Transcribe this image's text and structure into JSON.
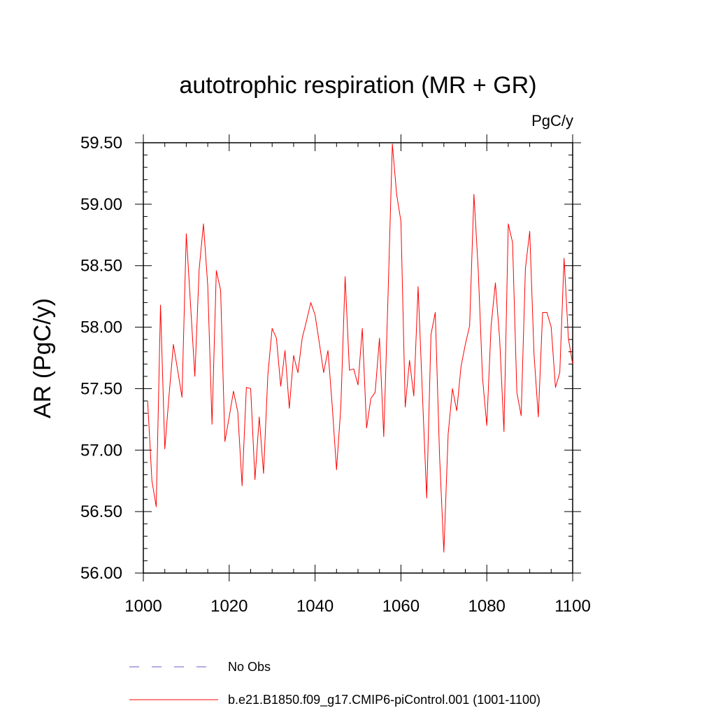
{
  "chart_data": {
    "type": "line",
    "title": "autotrophic respiration (MR + GR)",
    "units_label": "PgC/y",
    "xlabel": "",
    "ylabel": "AR  (PgC/y)",
    "xlim": [
      1000,
      1100
    ],
    "ylim": [
      56.0,
      59.5
    ],
    "xticks": [
      1000,
      1020,
      1040,
      1060,
      1080,
      1100
    ],
    "xtick_labels": [
      "1000",
      "1020",
      "1040",
      "1060",
      "1080",
      "1100"
    ],
    "yticks": [
      56.0,
      56.5,
      57.0,
      57.5,
      58.0,
      58.5,
      59.0,
      59.5
    ],
    "ytick_labels": [
      "56.00",
      "56.50",
      "57.00",
      "57.50",
      "58.00",
      "58.50",
      "59.00",
      "59.50"
    ],
    "grid": false,
    "legend_position": "bottom",
    "series": [
      {
        "name": "No Obs",
        "style": "dashed",
        "color": "#6a5acd",
        "x": [],
        "values": []
      },
      {
        "name": "b.e21.B1850.f09_g17.CMIP6-piControl.001 (1001-1100)",
        "style": "solid",
        "color": "#ff0000",
        "x": [
          1001,
          1002,
          1003,
          1004,
          1005,
          1006,
          1007,
          1008,
          1009,
          1010,
          1011,
          1012,
          1013,
          1014,
          1015,
          1016,
          1017,
          1018,
          1019,
          1020,
          1021,
          1022,
          1023,
          1024,
          1025,
          1026,
          1027,
          1028,
          1029,
          1030,
          1031,
          1032,
          1033,
          1034,
          1035,
          1036,
          1037,
          1038,
          1039,
          1040,
          1041,
          1042,
          1043,
          1044,
          1045,
          1046,
          1047,
          1048,
          1049,
          1050,
          1051,
          1052,
          1053,
          1054,
          1055,
          1056,
          1057,
          1058,
          1059,
          1060,
          1061,
          1062,
          1063,
          1064,
          1065,
          1066,
          1067,
          1068,
          1069,
          1070,
          1071,
          1072,
          1073,
          1074,
          1075,
          1076,
          1077,
          1078,
          1079,
          1080,
          1081,
          1082,
          1083,
          1084,
          1085,
          1086,
          1087,
          1088,
          1089,
          1090,
          1091,
          1092,
          1093,
          1094,
          1095,
          1096,
          1097,
          1098,
          1099,
          1100
        ],
        "values": [
          57.4,
          56.75,
          56.54,
          58.18,
          57.01,
          57.45,
          57.86,
          57.65,
          57.43,
          58.76,
          58.18,
          57.6,
          58.47,
          58.84,
          58.34,
          57.21,
          58.46,
          58.3,
          57.07,
          57.27,
          57.48,
          57.31,
          56.71,
          57.51,
          57.5,
          56.76,
          57.27,
          56.81,
          57.61,
          57.99,
          57.91,
          57.52,
          57.81,
          57.34,
          57.77,
          57.63,
          57.91,
          58.05,
          58.2,
          58.1,
          57.87,
          57.63,
          57.81,
          57.36,
          56.84,
          57.35,
          58.41,
          57.65,
          57.66,
          57.53,
          57.99,
          57.18,
          57.42,
          57.47,
          57.91,
          57.11,
          58.26,
          59.49,
          59.08,
          58.86,
          57.35,
          57.73,
          57.44,
          58.33,
          57.46,
          56.61,
          57.94,
          58.12,
          56.95,
          56.17,
          57.13,
          57.5,
          57.32,
          57.68,
          57.86,
          58.01,
          59.08,
          58.47,
          57.59,
          57.2,
          58.01,
          58.36,
          57.9,
          57.15,
          58.84,
          58.69,
          57.47,
          57.28,
          58.48,
          58.78,
          57.78,
          57.27,
          58.12,
          58.12,
          58.0,
          57.51,
          57.63,
          58.56,
          57.91,
          57.7
        ]
      }
    ]
  }
}
